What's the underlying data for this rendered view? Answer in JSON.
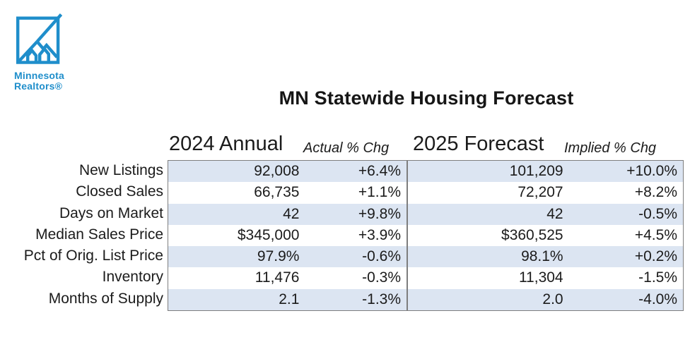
{
  "logo": {
    "line1": "Minnesota",
    "line2": "Realtors®"
  },
  "title": "MN Statewide Housing Forecast",
  "table": {
    "headers": {
      "annual": "2024 Annual",
      "actual": "Actual % Chg",
      "forecast": "2025 Forecast",
      "implied": "Implied % Chg"
    },
    "rows": [
      {
        "label": "New Listings",
        "annual2024": "92,008",
        "actual_chg": "+6.4%",
        "forecast2025": "101,209",
        "implied_chg": "+10.0%"
      },
      {
        "label": "Closed Sales",
        "annual2024": "66,735",
        "actual_chg": "+1.1%",
        "forecast2025": "72,207",
        "implied_chg": "+8.2%"
      },
      {
        "label": "Days on Market",
        "annual2024": "42",
        "actual_chg": "+9.8%",
        "forecast2025": "42",
        "implied_chg": "-0.5%"
      },
      {
        "label": "Median Sales Price",
        "annual2024": "$345,000",
        "actual_chg": "+3.9%",
        "forecast2025": "$360,525",
        "implied_chg": "+4.5%"
      },
      {
        "label": "Pct of Orig. List Price",
        "annual2024": "97.9%",
        "actual_chg": "-0.6%",
        "forecast2025": "98.1%",
        "implied_chg": "+0.2%"
      },
      {
        "label": "Inventory",
        "annual2024": "11,476",
        "actual_chg": "-0.3%",
        "forecast2025": "11,304",
        "implied_chg": "-1.5%"
      },
      {
        "label": "Months of Supply",
        "annual2024": "2.1",
        "actual_chg": "-1.3%",
        "forecast2025": "2.0",
        "implied_chg": "-4.0%"
      }
    ]
  },
  "colors": {
    "brand_blue": "#1f8ecb",
    "row_stripe": "#dce5f2",
    "table_border": "#7e7e7e",
    "text": "#1b1b1b"
  },
  "chart_data": {
    "type": "table",
    "title": "MN Statewide Housing Forecast",
    "columns": [
      "2024 Annual",
      "Actual % Chg",
      "2025 Forecast",
      "Implied % Chg"
    ],
    "row_labels": [
      "New Listings",
      "Closed Sales",
      "Days on Market",
      "Median Sales Price",
      "Pct of Orig. List Price",
      "Inventory",
      "Months of Supply"
    ],
    "rows": [
      [
        "92,008",
        "+6.4%",
        "101,209",
        "+10.0%"
      ],
      [
        "66,735",
        "+1.1%",
        "72,207",
        "+8.2%"
      ],
      [
        "42",
        "+9.8%",
        "42",
        "-0.5%"
      ],
      [
        "$345,000",
        "+3.9%",
        "$360,525",
        "+4.5%"
      ],
      [
        "97.9%",
        "-0.6%",
        "98.1%",
        "+0.2%"
      ],
      [
        "11,476",
        "-0.3%",
        "11,304",
        "-1.5%"
      ],
      [
        "2.1",
        "-1.3%",
        "2.0",
        "-4.0%"
      ]
    ]
  }
}
